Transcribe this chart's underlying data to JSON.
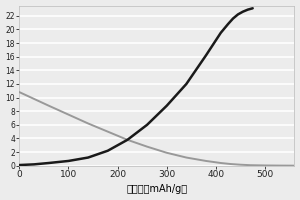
{
  "title": "",
  "xlabel": "比容量（mAh/g）",
  "ylabel": "",
  "xlim": [
    0,
    560
  ],
  "ylim": [
    0,
    2.35
  ],
  "ytick_vals": [
    0,
    0.2,
    0.4,
    0.6,
    0.8,
    1.0,
    1.2,
    1.4,
    1.6,
    1.8,
    2.0,
    2.2
  ],
  "ytick_labels": [
    "0",
    "2",
    "4",
    "6",
    "8",
    "10",
    "12",
    "14",
    "16",
    "18",
    "20",
    "22"
  ],
  "xticks": [
    0,
    100,
    200,
    300,
    400,
    500
  ],
  "xtick_labels": [
    "0",
    "100",
    "200",
    "300",
    "400",
    "500"
  ],
  "background_color": "#ececec",
  "grid_color": "#ffffff",
  "line1_color": "#999999",
  "line2_color": "#1a1a1a",
  "line1_x": [
    0,
    30,
    60,
    100,
    140,
    180,
    220,
    260,
    300,
    340,
    380,
    410,
    430,
    450,
    470,
    500,
    530,
    560
  ],
  "line1_y": [
    1.08,
    0.98,
    0.88,
    0.75,
    0.62,
    0.5,
    0.38,
    0.28,
    0.19,
    0.12,
    0.07,
    0.04,
    0.025,
    0.015,
    0.008,
    0.004,
    0.002,
    0.001
  ],
  "line2_x": [
    0,
    30,
    60,
    100,
    140,
    180,
    220,
    260,
    300,
    340,
    380,
    410,
    425,
    435,
    445,
    455,
    465,
    475
  ],
  "line2_y": [
    0.01,
    0.02,
    0.04,
    0.07,
    0.12,
    0.22,
    0.38,
    0.6,
    0.88,
    1.2,
    1.62,
    1.95,
    2.08,
    2.16,
    2.22,
    2.26,
    2.29,
    2.31
  ]
}
